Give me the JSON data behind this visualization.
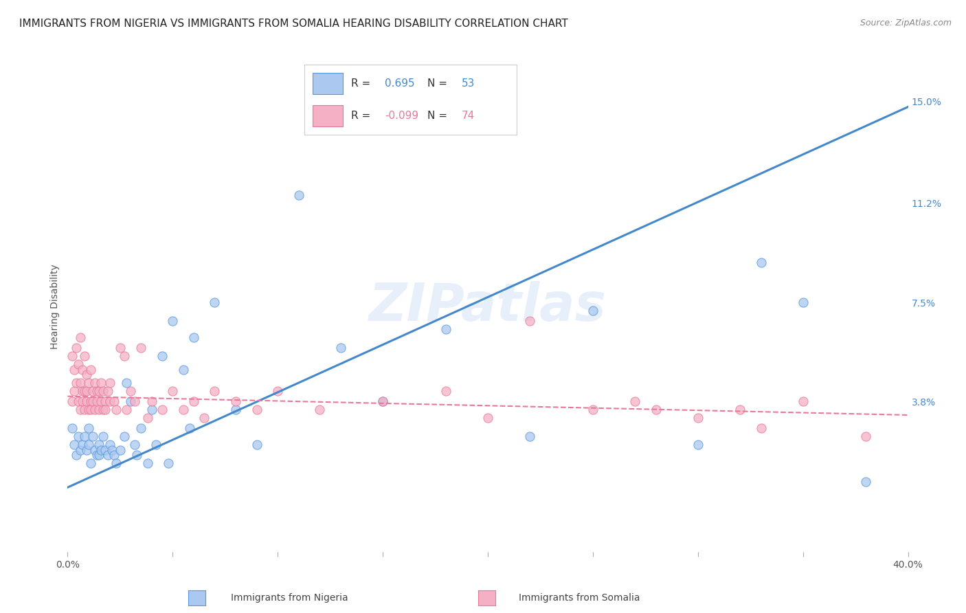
{
  "title": "IMMIGRANTS FROM NIGERIA VS IMMIGRANTS FROM SOMALIA HEARING DISABILITY CORRELATION CHART",
  "source": "Source: ZipAtlas.com",
  "ylabel": "Hearing Disability",
  "yticks": [
    "15.0%",
    "11.2%",
    "7.5%",
    "3.8%"
  ],
  "ytick_vals": [
    0.15,
    0.112,
    0.075,
    0.038
  ],
  "xlim": [
    0.0,
    0.4
  ],
  "ylim": [
    -0.018,
    0.165
  ],
  "nigeria_color": "#aac8f0",
  "somalia_color": "#f5b0c5",
  "nigeria_edge_color": "#5599dd",
  "somalia_edge_color": "#e87898",
  "nigeria_line_color": "#4488cc",
  "somalia_line_color": "#e87898",
  "nigeria_scatter_x": [
    0.002,
    0.003,
    0.004,
    0.005,
    0.006,
    0.007,
    0.008,
    0.009,
    0.01,
    0.01,
    0.011,
    0.012,
    0.013,
    0.014,
    0.015,
    0.015,
    0.016,
    0.017,
    0.018,
    0.019,
    0.02,
    0.021,
    0.022,
    0.023,
    0.025,
    0.027,
    0.028,
    0.03,
    0.032,
    0.033,
    0.035,
    0.038,
    0.04,
    0.042,
    0.045,
    0.048,
    0.05,
    0.055,
    0.058,
    0.06,
    0.07,
    0.08,
    0.09,
    0.11,
    0.13,
    0.15,
    0.18,
    0.22,
    0.25,
    0.3,
    0.33,
    0.35,
    0.38
  ],
  "nigeria_scatter_y": [
    0.028,
    0.022,
    0.018,
    0.025,
    0.02,
    0.022,
    0.025,
    0.02,
    0.028,
    0.022,
    0.015,
    0.025,
    0.02,
    0.018,
    0.022,
    0.018,
    0.02,
    0.025,
    0.02,
    0.018,
    0.022,
    0.02,
    0.018,
    0.015,
    0.02,
    0.025,
    0.045,
    0.038,
    0.022,
    0.018,
    0.028,
    0.015,
    0.035,
    0.022,
    0.055,
    0.015,
    0.068,
    0.05,
    0.028,
    0.062,
    0.075,
    0.035,
    0.022,
    0.115,
    0.058,
    0.038,
    0.065,
    0.025,
    0.072,
    0.022,
    0.09,
    0.075,
    0.008
  ],
  "somalia_scatter_x": [
    0.002,
    0.002,
    0.003,
    0.003,
    0.004,
    0.004,
    0.005,
    0.005,
    0.006,
    0.006,
    0.006,
    0.007,
    0.007,
    0.007,
    0.008,
    0.008,
    0.008,
    0.009,
    0.009,
    0.009,
    0.01,
    0.01,
    0.011,
    0.011,
    0.011,
    0.012,
    0.012,
    0.013,
    0.013,
    0.014,
    0.014,
    0.015,
    0.015,
    0.016,
    0.016,
    0.017,
    0.017,
    0.018,
    0.018,
    0.019,
    0.02,
    0.02,
    0.022,
    0.023,
    0.025,
    0.027,
    0.028,
    0.03,
    0.032,
    0.035,
    0.038,
    0.04,
    0.045,
    0.05,
    0.055,
    0.06,
    0.065,
    0.07,
    0.08,
    0.09,
    0.1,
    0.12,
    0.15,
    0.18,
    0.2,
    0.25,
    0.27,
    0.3,
    0.32,
    0.35,
    0.22,
    0.28,
    0.33,
    0.38
  ],
  "somalia_scatter_y": [
    0.038,
    0.055,
    0.042,
    0.05,
    0.058,
    0.045,
    0.052,
    0.038,
    0.062,
    0.045,
    0.035,
    0.042,
    0.05,
    0.038,
    0.055,
    0.042,
    0.035,
    0.048,
    0.038,
    0.042,
    0.035,
    0.045,
    0.038,
    0.05,
    0.035,
    0.042,
    0.038,
    0.045,
    0.035,
    0.042,
    0.038,
    0.035,
    0.042,
    0.038,
    0.045,
    0.035,
    0.042,
    0.038,
    0.035,
    0.042,
    0.038,
    0.045,
    0.038,
    0.035,
    0.058,
    0.055,
    0.035,
    0.042,
    0.038,
    0.058,
    0.032,
    0.038,
    0.035,
    0.042,
    0.035,
    0.038,
    0.032,
    0.042,
    0.038,
    0.035,
    0.042,
    0.035,
    0.038,
    0.042,
    0.032,
    0.035,
    0.038,
    0.032,
    0.035,
    0.038,
    0.068,
    0.035,
    0.028,
    0.025
  ],
  "nigeria_line_x": [
    0.0,
    0.4
  ],
  "nigeria_line_y": [
    0.006,
    0.148
  ],
  "somalia_line_x": [
    0.0,
    0.4
  ],
  "somalia_line_y": [
    0.04,
    0.033
  ],
  "watermark": "ZIPatlas",
  "background_color": "#ffffff",
  "grid_color": "#cccccc",
  "title_fontsize": 11,
  "source_fontsize": 9,
  "label_fontsize": 10,
  "tick_fontsize": 10,
  "r_nigeria": "0.695",
  "n_nigeria": "53",
  "r_somalia": "-0.099",
  "n_somalia": "74"
}
